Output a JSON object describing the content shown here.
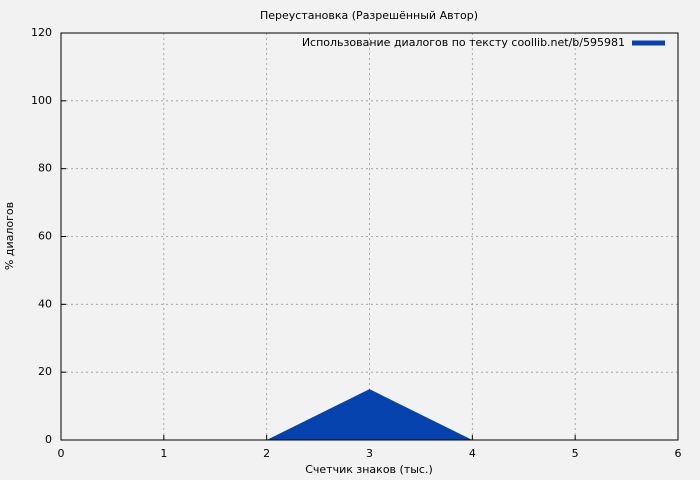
{
  "chart_data": {
    "type": "area",
    "title": "Переустановка (Разрешённый Автор)",
    "xlabel": "Счетчик знаков (тыс.)",
    "ylabel": "% диалогов",
    "x": [
      0,
      1,
      2,
      3,
      4,
      5,
      6
    ],
    "series": [
      {
        "name": "Использование диалогов по тексту coollib.net/b/595981",
        "color": "#0542ad",
        "values": [
          0,
          0,
          0,
          15,
          0,
          0,
          0
        ]
      }
    ],
    "xlim": [
      0,
      6
    ],
    "xticks": [
      0,
      1,
      2,
      3,
      4,
      5,
      6
    ],
    "ylim": [
      0,
      120
    ],
    "yticks": [
      0,
      20,
      40,
      60,
      80,
      100,
      120
    ],
    "grid": true,
    "legend": "top-right"
  }
}
